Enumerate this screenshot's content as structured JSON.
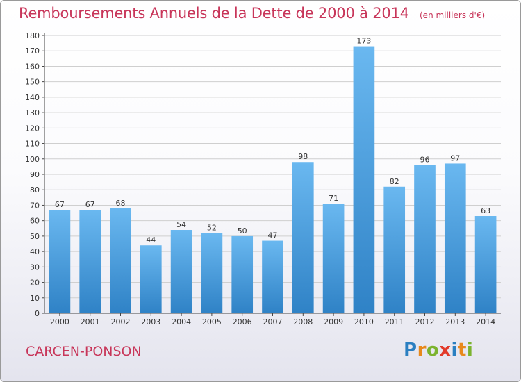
{
  "header": {
    "title": "Remboursements Annuels de la Dette de 2000 à 2014",
    "unit": "(en milliers d'€)"
  },
  "footer": {
    "commune": "CARCEN-PONSON",
    "logo_letters": [
      "P",
      "r",
      "o",
      "x",
      "i",
      "t",
      "i"
    ],
    "logo_colors": [
      "#2a7fc1",
      "#e8891c",
      "#7bb32e",
      "#e23a2a",
      "#2a7fc1",
      "#e8891c",
      "#7bb32e"
    ]
  },
  "colors": {
    "title": "#c8365a",
    "bar_top": "#6ab8f0",
    "bar_bottom": "#2f82c6",
    "grid": "#cfcfcf",
    "axis": "#444444"
  },
  "chart_data": {
    "type": "bar",
    "title": "Remboursements Annuels de la Dette de 2000 à 2014",
    "categories": [
      "2000",
      "2001",
      "2002",
      "2003",
      "2004",
      "2005",
      "2006",
      "2007",
      "2008",
      "2009",
      "2010",
      "2011",
      "2012",
      "2013",
      "2014"
    ],
    "values": [
      67,
      67,
      68,
      44,
      54,
      52,
      50,
      47,
      98,
      71,
      173,
      82,
      96,
      97,
      63
    ],
    "ylim": [
      0,
      180
    ],
    "yticks": [
      0,
      10,
      20,
      30,
      40,
      50,
      60,
      70,
      80,
      90,
      100,
      110,
      120,
      130,
      140,
      150,
      160,
      170,
      180
    ],
    "grid": true,
    "xlabel": "",
    "ylabel": ""
  }
}
